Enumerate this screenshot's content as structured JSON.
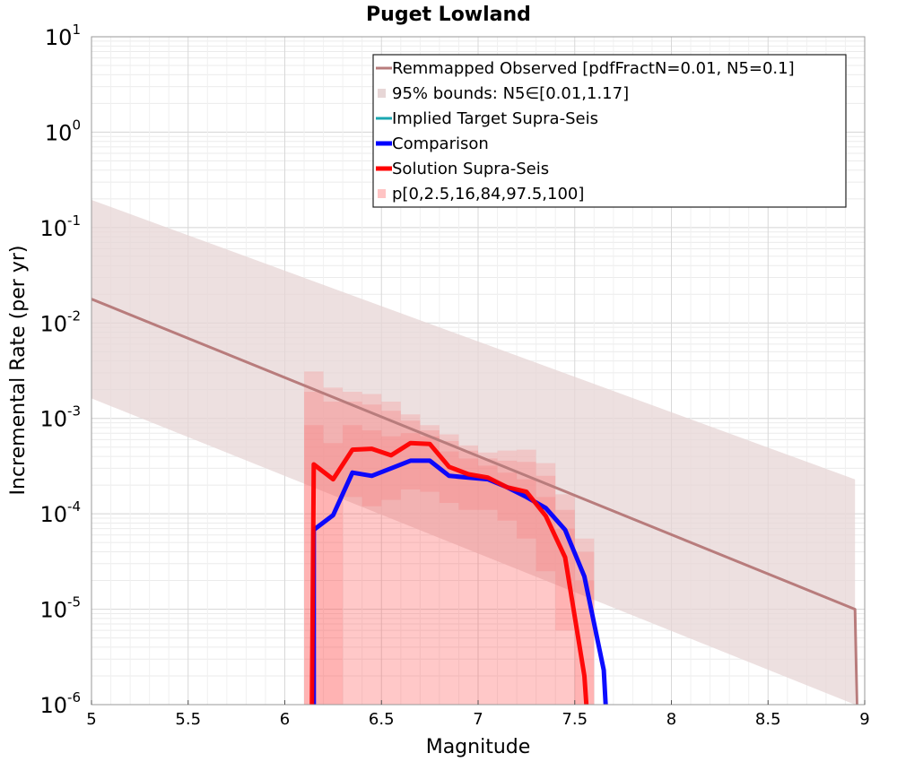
{
  "chart_data": {
    "type": "line",
    "title": "Puget Lowland",
    "xlabel": "Magnitude",
    "ylabel": "Incremental Rate (per yr)",
    "xlim": [
      5,
      9
    ],
    "ylim": [
      1e-06,
      10
    ],
    "yscale": "log",
    "grid": true,
    "legend_position": "top-right",
    "x_ticks": [
      {
        "value": 5,
        "label": "5"
      },
      {
        "value": 5.5,
        "label": "5.5"
      },
      {
        "value": 6,
        "label": "6"
      },
      {
        "value": 6.5,
        "label": "6.5"
      },
      {
        "value": 7,
        "label": "7"
      },
      {
        "value": 7.5,
        "label": "7.5"
      },
      {
        "value": 8,
        "label": "8"
      },
      {
        "value": 8.5,
        "label": "8.5"
      },
      {
        "value": 9,
        "label": "9"
      }
    ],
    "y_ticks": [
      {
        "exp": 1,
        "base": "10",
        "sup": "1"
      },
      {
        "exp": 0,
        "base": "10",
        "sup": "0"
      },
      {
        "exp": -1,
        "base": "10",
        "sup": "-1"
      },
      {
        "exp": -2,
        "base": "10",
        "sup": "-2"
      },
      {
        "exp": -3,
        "base": "10",
        "sup": "-3"
      },
      {
        "exp": -4,
        "base": "10",
        "sup": "-4"
      },
      {
        "exp": -5,
        "base": "10",
        "sup": "-5"
      },
      {
        "exp": -6,
        "base": "10",
        "sup": "-6"
      }
    ],
    "legend": [
      {
        "label": "Remmapped Observed [pdfFractN=0.01, N5=0.1]",
        "color": "#b87c7c",
        "kind": "line"
      },
      {
        "label": "95% bounds: N5∈[0.01,1.17]",
        "color": "#e7d6d6",
        "kind": "fill"
      },
      {
        "label": "Implied Target Supra-Seis",
        "color": "#1aa7b0",
        "kind": "line"
      },
      {
        "label": "Comparison",
        "color": "#0000ff",
        "kind": "thick"
      },
      {
        "label": "Solution Supra-Seis",
        "color": "#ff0000",
        "kind": "thick"
      },
      {
        "label": "p[0,2.5,16,84,97.5,100]",
        "color": "#ffc4c4",
        "kind": "fill"
      }
    ],
    "series": [
      {
        "name": "Remmapped Observed [pdfFractN=0.01, N5=0.1]",
        "color": "#b87c7c",
        "x": [
          5.0,
          8.95,
          8.96
        ],
        "y": [
          0.0178,
          1e-05,
          1e-07
        ]
      },
      {
        "name": "95% bounds: N5∈[0.01,1.17]",
        "color": "#e7d6d6",
        "kind": "band",
        "x": [
          5.0,
          8.95
        ],
        "lower": [
          0.00162,
          9.1e-07
        ],
        "upper": [
          0.195,
          0.000229
        ]
      },
      {
        "name": "Comparison",
        "color": "#0000ff",
        "x": [
          6.15,
          6.15,
          6.25,
          6.35,
          6.45,
          6.55,
          6.65,
          6.75,
          6.85,
          6.95,
          7.05,
          7.15,
          7.25,
          7.35,
          7.45,
          7.55,
          7.65,
          7.66
        ],
        "y": [
          1e-07,
          6.8e-05,
          9.7e-05,
          0.00027,
          0.00025,
          0.0003,
          0.00036,
          0.00036,
          0.00025,
          0.00024,
          0.00023,
          0.00019,
          0.00015,
          0.000115,
          6.8e-05,
          2.2e-05,
          2.3e-06,
          1e-07
        ]
      },
      {
        "name": "Solution Supra-Seis",
        "color": "#ff0000",
        "x": [
          6.14,
          6.15,
          6.25,
          6.35,
          6.45,
          6.55,
          6.65,
          6.75,
          6.85,
          6.95,
          7.05,
          7.15,
          7.25,
          7.35,
          7.45,
          7.55,
          7.56
        ],
        "y": [
          1e-07,
          0.00033,
          0.00023,
          0.00047,
          0.00048,
          0.00041,
          0.00055,
          0.00054,
          0.00031,
          0.00026,
          0.00024,
          0.00019,
          0.00017,
          9.5e-05,
          3.5e-05,
          2e-06,
          1e-07
        ]
      },
      {
        "name": "p[0,2.5,16,84,97.5,100]",
        "color": "#ffc4c4",
        "kind": "percentile_bands",
        "x": [
          6.15,
          6.25,
          6.35,
          6.45,
          6.55,
          6.65,
          6.75,
          6.85,
          6.95,
          7.05,
          7.15,
          7.25,
          7.35,
          7.45,
          7.55
        ],
        "bands": [
          {
            "name": "p0-p100",
            "lower": [
              1e-07,
              1e-07,
              1e-07,
              1e-07,
              1e-07,
              1e-07,
              1e-07,
              1e-07,
              1e-07,
              1e-07,
              1e-07,
              1e-07,
              1e-07,
              1e-07,
              1e-07
            ],
            "upper": [
              0.0031,
              0.0021,
              0.0019,
              0.0018,
              0.0015,
              0.0011,
              0.00085,
              0.00068,
              0.00052,
              0.00044,
              0.00046,
              0.00047,
              0.00034,
              0.00016,
              5.5e-05
            ]
          },
          {
            "name": "p2.5-p97.5",
            "lower": [
              1e-07,
              1e-07,
              1e-07,
              1e-07,
              1e-07,
              1e-07,
              1e-07,
              1e-07,
              1e-07,
              1e-07,
              1e-07,
              1e-07,
              1e-07,
              1e-07,
              1e-07
            ],
            "upper": [
              0.0019,
              0.0015,
              0.0015,
              0.0014,
              0.0012,
              0.00095,
              0.00075,
              0.00058,
              0.00046,
              0.00038,
              0.00036,
              0.00035,
              0.00025,
              0.00011,
              4e-05
            ]
          },
          {
            "name": "p16-p84",
            "lower": [
              1e-07,
              1e-07,
              0.00015,
              0.00012,
              0.00014,
              0.00018,
              0.00017,
              0.00013,
              0.00011,
              0.00011,
              8.5e-05,
              5.5e-05,
              2.5e-05,
              6e-06,
              1e-07
            ],
            "upper": [
              0.00085,
              0.00055,
              0.00085,
              0.00075,
              0.00065,
              0.0007,
              0.00065,
              0.00045,
              0.00038,
              0.00032,
              0.00027,
              0.00023,
              0.00015,
              7e-05,
              2e-05
            ]
          }
        ]
      }
    ]
  }
}
